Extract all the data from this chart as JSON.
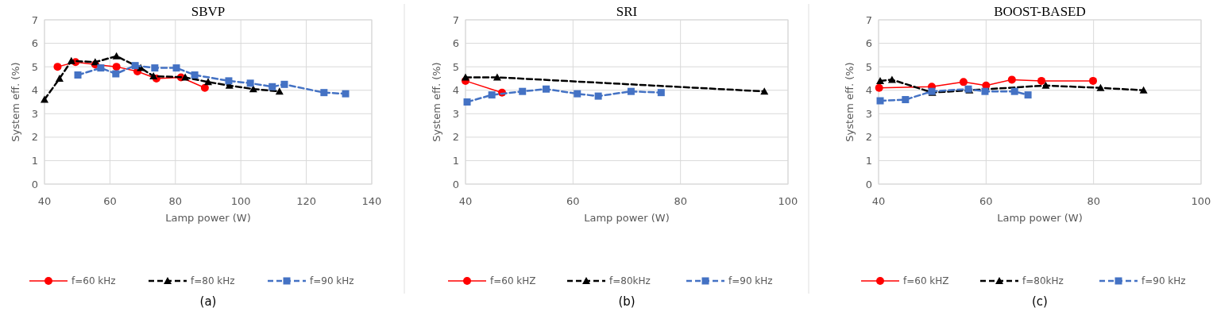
{
  "chart_data": [
    {
      "type": "line",
      "title": "SBVP",
      "xlabel": "Lamp power (W)",
      "ylabel": "System eff. (%)",
      "xlim": [
        40,
        140
      ],
      "xticks": [
        40,
        60,
        80,
        100,
        120,
        140
      ],
      "ylim": [
        0,
        7
      ],
      "yticks": [
        0,
        1,
        2,
        3,
        4,
        5,
        6,
        7
      ],
      "grid": true,
      "legend": "bottom",
      "annotations": [
        "(a)"
      ],
      "series": [
        {
          "name": "f=60 kHz",
          "color": "#ff0000",
          "marker": "circle",
          "line_style": "solid",
          "x": [
            44,
            49.5,
            55.5,
            62,
            68.4,
            74.2,
            81.7,
            89
          ],
          "values": [
            5.0,
            5.2,
            5.1,
            5.0,
            4.8,
            4.5,
            4.55,
            4.1
          ]
        },
        {
          "name": "f=80 kHz",
          "color": "#000000",
          "marker": "triangle",
          "line_style": "dashed",
          "x": [
            40,
            44.6,
            48.2,
            55.5,
            62,
            69.4,
            73.3,
            83,
            90,
            96.5,
            103.8,
            111.8
          ],
          "values": [
            3.6,
            4.5,
            5.25,
            5.2,
            5.45,
            4.95,
            4.6,
            4.55,
            4.35,
            4.2,
            4.05,
            3.95
          ]
        },
        {
          "name": "f=90 kHz",
          "color": "#4472c4",
          "marker": "square",
          "line_style": "dashed",
          "x": [
            50.2,
            57.2,
            61.8,
            67.7,
            73.7,
            80.3,
            85.9,
            96.3,
            102.9,
            109.6,
            113.3,
            125.4,
            132
          ],
          "values": [
            4.65,
            4.95,
            4.7,
            5.05,
            4.95,
            4.95,
            4.65,
            4.4,
            4.3,
            4.15,
            4.25,
            3.9,
            3.85
          ]
        }
      ]
    },
    {
      "type": "line",
      "title": "SRI",
      "xlabel": "Lamp power (W)",
      "ylabel": "System eff. (%)",
      "xlim": [
        40,
        100
      ],
      "xticks": [
        40,
        60,
        80,
        100
      ],
      "ylim": [
        0,
        7
      ],
      "yticks": [
        0,
        1,
        2,
        3,
        4,
        5,
        6,
        7
      ],
      "grid": true,
      "legend": "bottom",
      "annotations": [
        "(b)"
      ],
      "series": [
        {
          "name": "f=60 kHZ",
          "color": "#ff0000",
          "marker": "circle",
          "line_style": "solid",
          "x": [
            40,
            46.8
          ],
          "values": [
            4.4,
            3.9
          ]
        },
        {
          "name": "f=80kHz",
          "color": "#000000",
          "marker": "triangle",
          "line_style": "dashed",
          "x": [
            40,
            45.9,
            95.6
          ],
          "values": [
            4.55,
            4.55,
            3.95
          ]
        },
        {
          "name": "f=90 kHz",
          "color": "#4472c4",
          "marker": "square",
          "line_style": "dashed",
          "x": [
            40.3,
            44.9,
            50.6,
            55,
            60.8,
            64.7,
            70.8,
            76.4
          ],
          "values": [
            3.5,
            3.8,
            3.95,
            4.05,
            3.85,
            3.75,
            3.95,
            3.9
          ]
        }
      ]
    },
    {
      "type": "line",
      "title": "BOOST-BASED",
      "xlabel": "Lamp power (W)",
      "ylabel": "System eff. (%)",
      "xlim": [
        40,
        100
      ],
      "xticks": [
        40,
        60,
        80,
        100
      ],
      "ylim": [
        0,
        7
      ],
      "yticks": [
        0,
        1,
        2,
        3,
        4,
        5,
        6,
        7
      ],
      "grid": true,
      "legend": "bottom",
      "annotations": [
        "(c)"
      ],
      "series": [
        {
          "name": "f=60 kHZ",
          "color": "#ff0000",
          "marker": "circle",
          "line_style": "solid",
          "x": [
            40.1,
            49.9,
            55.8,
            60,
            64.8,
            70.3,
            79.9
          ],
          "values": [
            4.1,
            4.15,
            4.35,
            4.2,
            4.45,
            4.4,
            4.4
          ]
        },
        {
          "name": "f=80kHz",
          "color": "#000000",
          "marker": "triangle",
          "line_style": "dashed",
          "x": [
            40.3,
            42.5,
            50,
            56.9,
            71.1,
            81.3,
            89.3
          ],
          "values": [
            4.4,
            4.45,
            3.9,
            4.0,
            4.2,
            4.1,
            4.0
          ]
        },
        {
          "name": "f=90 kHz",
          "color": "#4472c4",
          "marker": "square",
          "line_style": "dashed",
          "x": [
            40.3,
            45,
            49.9,
            56.7,
            59.8,
            65.3,
            67.8
          ],
          "values": [
            3.55,
            3.6,
            3.95,
            4.05,
            3.95,
            3.95,
            3.8
          ]
        }
      ]
    }
  ]
}
